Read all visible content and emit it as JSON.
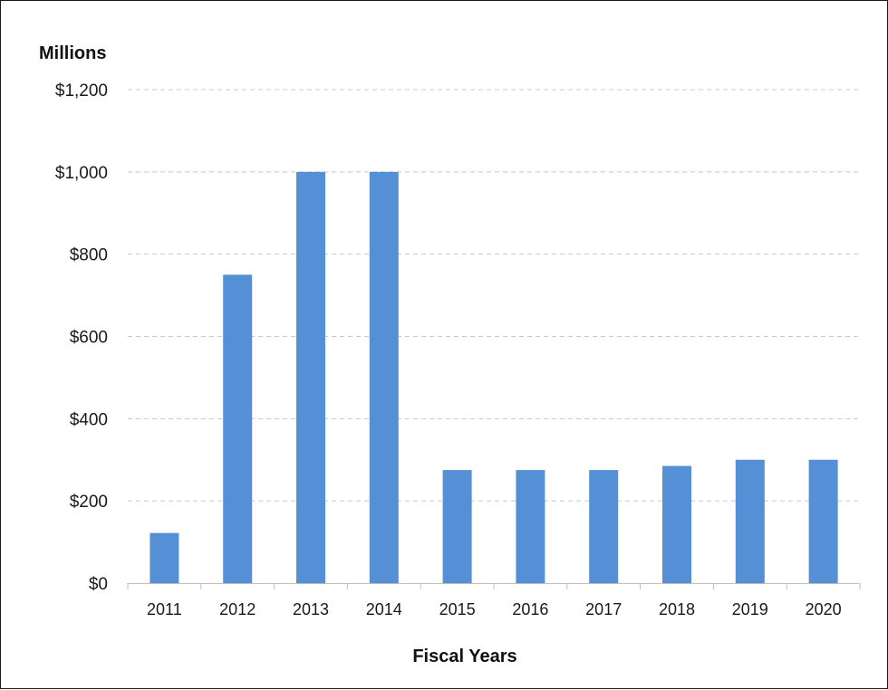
{
  "chart_data": {
    "type": "bar",
    "title": "",
    "units_label": "Millions",
    "xlabel": "Fiscal Years",
    "ylabel": "",
    "categories": [
      "2011",
      "2012",
      "2013",
      "2014",
      "2015",
      "2016",
      "2017",
      "2018",
      "2019",
      "2020"
    ],
    "values": [
      122,
      750,
      1000,
      1000,
      275,
      275,
      275,
      285,
      300,
      300
    ],
    "ylim": [
      0,
      1200
    ],
    "y_ticks": [
      0,
      200,
      400,
      600,
      800,
      1000,
      1200
    ],
    "y_tick_labels": [
      "$0",
      "$200",
      "$400",
      "$600",
      "$800",
      "$1,000",
      "$1,200"
    ],
    "grid": true,
    "legend": "none",
    "bar_color": "#5590d6",
    "grid_color": "#c8c8c8"
  }
}
